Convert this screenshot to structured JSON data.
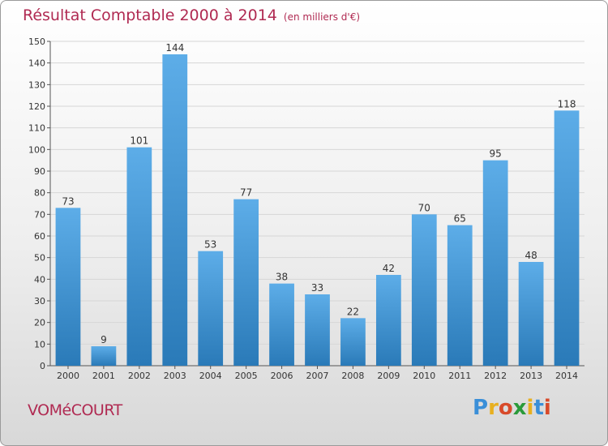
{
  "header": {
    "title": "Résultat Comptable 2000 à 2014",
    "unit": "(en milliers d'€)"
  },
  "footer": {
    "commune": "VOMéCOURT",
    "logo_letters": [
      "P",
      "r",
      "o",
      "x",
      "i",
      "t",
      "i"
    ],
    "logo_colors": [
      "#3a8fd8",
      "#e8b020",
      "#d84a2a",
      "#2a9a3a",
      "#e8b020",
      "#3a8fd8",
      "#d84a2a"
    ]
  },
  "chart_data": {
    "type": "bar",
    "title": "Résultat Comptable 2000 à 2014",
    "subtitle": "(en milliers d'€)",
    "xlabel": "",
    "ylabel": "",
    "categories": [
      "2000",
      "2001",
      "2002",
      "2003",
      "2004",
      "2005",
      "2006",
      "2007",
      "2008",
      "2009",
      "2010",
      "2011",
      "2012",
      "2013",
      "2014"
    ],
    "values": [
      73,
      9,
      101,
      144,
      53,
      77,
      38,
      33,
      22,
      42,
      70,
      65,
      95,
      48,
      118
    ],
    "ylim": [
      0,
      150
    ],
    "yticks": [
      0,
      10,
      20,
      30,
      40,
      50,
      60,
      70,
      80,
      90,
      100,
      110,
      120,
      130,
      140,
      150
    ],
    "grid": true,
    "colors": {
      "bar_top": "#5dade8",
      "bar_bottom": "#2a7ab8",
      "grid": "#d6d6d6",
      "axis": "#555555",
      "label": "#333333"
    }
  }
}
